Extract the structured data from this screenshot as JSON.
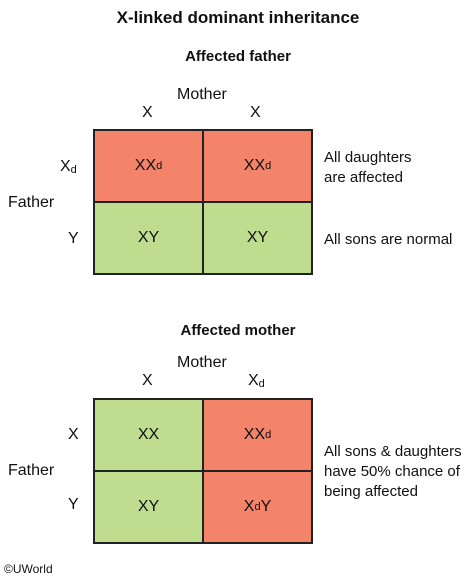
{
  "title": "X-linked dominant inheritance",
  "copyright": "©UWorld",
  "colors": {
    "affected": "#f3846a",
    "normal": "#bfdc8f",
    "border": "#222222"
  },
  "father_panel": {
    "subtitle": "Affected father",
    "col_header": "Mother",
    "row_header": "Father",
    "columns": [
      {
        "base": "X",
        "sub": ""
      },
      {
        "base": "X",
        "sub": ""
      }
    ],
    "rows": [
      {
        "base": "X",
        "sub": "d"
      },
      {
        "base": "Y",
        "sub": ""
      }
    ],
    "cells": [
      [
        {
          "text": "XX",
          "sub": "d",
          "tail": "",
          "status": "affected"
        },
        {
          "text": "XX",
          "sub": "d",
          "tail": "",
          "status": "affected"
        }
      ],
      [
        {
          "text": "XY",
          "sub": "",
          "tail": "",
          "status": "normal"
        },
        {
          "text": "XY",
          "sub": "",
          "tail": "",
          "status": "normal"
        }
      ]
    ],
    "notes": [
      {
        "line1": "All daughters",
        "line2": "are affected"
      },
      {
        "line1": "All sons are normal",
        "line2": ""
      }
    ]
  },
  "mother_panel": {
    "subtitle": "Affected mother",
    "col_header": "Mother",
    "row_header": "Father",
    "columns": [
      {
        "base": "X",
        "sub": ""
      },
      {
        "base": "X",
        "sub": "d"
      }
    ],
    "rows": [
      {
        "base": "X",
        "sub": ""
      },
      {
        "base": "Y",
        "sub": ""
      }
    ],
    "cells": [
      [
        {
          "text": "XX",
          "sub": "",
          "tail": "",
          "status": "normal"
        },
        {
          "text": "XX",
          "sub": "d",
          "tail": "",
          "status": "affected"
        }
      ],
      [
        {
          "text": "XY",
          "sub": "",
          "tail": "",
          "status": "normal"
        },
        {
          "text": "X",
          "sub": "d",
          "tail": "Y",
          "status": "affected"
        }
      ]
    ],
    "note": {
      "line1": "All sons & daughters",
      "line2": "have 50% chance of",
      "line3": "being affected"
    }
  }
}
